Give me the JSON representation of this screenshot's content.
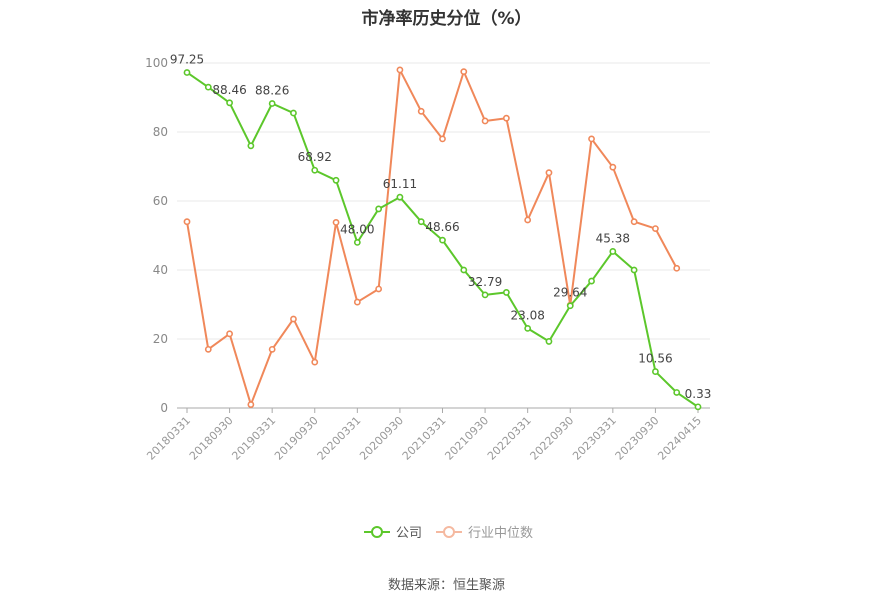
{
  "chart_data": {
    "type": "line",
    "title": "市净率历史分位（%）",
    "ylim": [
      0,
      100
    ],
    "y_ticks": [
      0,
      20,
      40,
      60,
      80,
      100
    ],
    "x": [
      "20180331",
      "20180630",
      "20180930",
      "20181231",
      "20190331",
      "20190630",
      "20190930",
      "20191231",
      "20200331",
      "20200630",
      "20200930",
      "20201231",
      "20210331",
      "20210630",
      "20210930",
      "20211231",
      "20220331",
      "20220630",
      "20220930",
      "20221231",
      "20230331",
      "20230630",
      "20230930",
      "20231231",
      "20240415"
    ],
    "x_tick_labels": [
      "20180331",
      "20180930",
      "20190331",
      "20190930",
      "20200331",
      "20200930",
      "20210331",
      "20210930",
      "20220331",
      "20220930",
      "20230331",
      "20230930",
      "20240415"
    ],
    "x_tick_indices": [
      0,
      2,
      4,
      6,
      8,
      10,
      12,
      14,
      16,
      18,
      20,
      22,
      24
    ],
    "grid": true,
    "legend_position": "bottom",
    "series": [
      {
        "name": "公司",
        "color": "#5cc72b",
        "values": [
          97.25,
          93.0,
          88.46,
          76.0,
          88.26,
          85.5,
          68.92,
          66.0,
          48.0,
          57.7,
          61.11,
          54.0,
          48.66,
          40.0,
          32.79,
          33.5,
          23.08,
          19.3,
          29.64,
          36.8,
          45.38,
          40.0,
          10.56,
          4.5,
          0.33
        ],
        "labels": [
          "97.25",
          "",
          "88.46",
          "",
          "88.26",
          "",
          "68.92",
          "",
          "48.00",
          "",
          "61.11",
          "",
          "48.66",
          "",
          "32.79",
          "",
          "23.08",
          "",
          "29.64",
          "",
          "45.38",
          "",
          "10.56",
          "",
          "0.33"
        ]
      },
      {
        "name": "行业中位数",
        "color": "#f0885a",
        "values": [
          54.0,
          17.0,
          21.5,
          1.0,
          17.0,
          25.8,
          13.3,
          53.8,
          30.7,
          34.5,
          98.0,
          86.0,
          78.0,
          97.5,
          83.2,
          84.0,
          54.5,
          68.2,
          29.8,
          78.0,
          69.8,
          54.0,
          52.0,
          40.5,
          null
        ]
      }
    ]
  },
  "legend": {
    "company": "公司",
    "industry": "行业中位数"
  },
  "source": "数据来源：恒生聚源"
}
